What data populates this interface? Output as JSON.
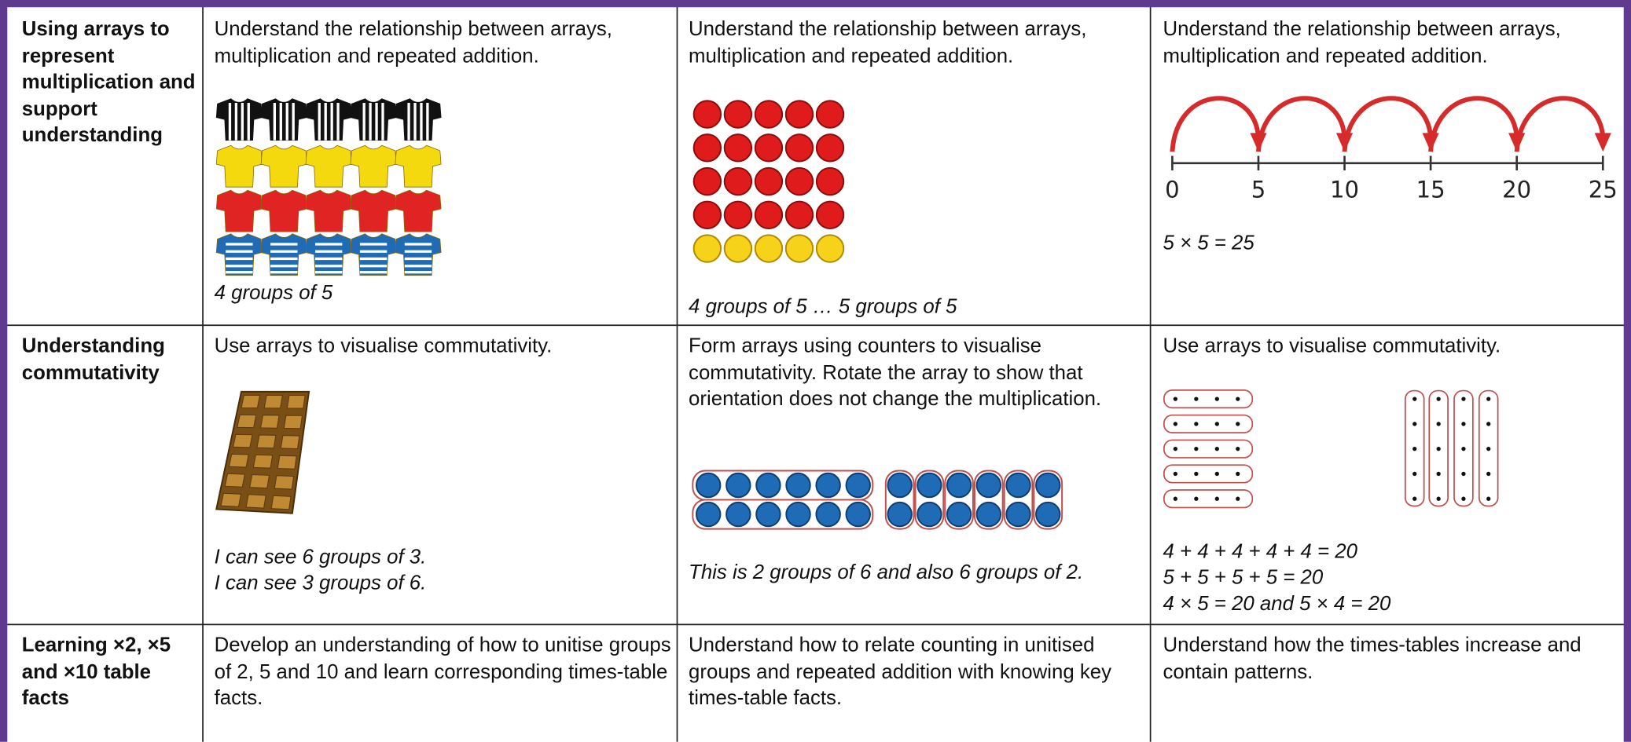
{
  "table": {
    "rows": [
      {
        "heading": "Using arrays to represent multiplication and support understanding",
        "cells": [
          {
            "text": "Understand the relationship between arrays, multiplication and repeated addition.",
            "captions": [
              "4 groups of 5"
            ]
          },
          {
            "text": "Understand the relationship between arrays, multiplication and repeated addition.",
            "captions": [
              "4 groups of 5 … 5 groups of 5"
            ]
          },
          {
            "text": "Understand the relationship between arrays, multiplication and repeated addition.",
            "number_line": [
              0,
              5,
              10,
              15,
              20,
              25
            ],
            "captions": [
              "5 × 5 = 25"
            ]
          }
        ]
      },
      {
        "heading": "Understanding commutativity",
        "cells": [
          {
            "text": "Use arrays to visualise commutativity.",
            "captions": [
              "I can see 6 groups of 3.",
              "I can see 3 groups of 6."
            ]
          },
          {
            "text": "Form arrays using counters to visualise commutativity. Rotate the array to show that orientation does not change the multiplication.",
            "captions": [
              "This is 2 groups of 6 and also 6 groups of 2."
            ]
          },
          {
            "text": "Use arrays to visualise commutativity.",
            "captions": [
              "4 + 4 + 4 + 4 + 4 = 20",
              "5 + 5 + 5 + 5 = 20",
              "4 × 5 = 20 and 5 × 4 = 20"
            ]
          }
        ]
      },
      {
        "heading": "Learning ×2, ×5 and ×10 table facts",
        "cells": [
          {
            "text": "Develop an understanding of how to unitise groups of 2, 5 and 10 and learn corresponding times-table facts."
          },
          {
            "text": "Understand how to relate counting in unitised groups and repeated addition with knowing key times-table facts."
          },
          {
            "text": "Understand how the times-tables increase and contain patterns."
          }
        ]
      }
    ]
  }
}
